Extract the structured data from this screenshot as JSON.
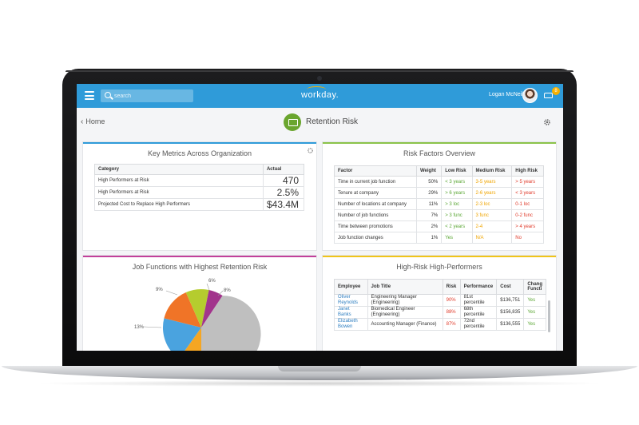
{
  "topbar": {
    "search_placeholder": "search",
    "logo_text": "workday.",
    "user_name": "Logan McNeil",
    "notification_count": "8"
  },
  "subheader": {
    "back_label": "Home",
    "page_title": "Retention Risk"
  },
  "key_metrics": {
    "title": "Key Metrics Across Organization",
    "columns": [
      "Category",
      "Actual"
    ],
    "rows": [
      {
        "category": "High Performers at Risk",
        "actual": "470"
      },
      {
        "category": "High Performers at Risk",
        "actual": "2.5%"
      },
      {
        "category": "Projected Cost to Replace High Performers",
        "actual": "$43.4M"
      }
    ]
  },
  "risk_factors": {
    "title": "Risk Factors Overview",
    "columns": [
      "Factor",
      "Weight",
      "Low Risk",
      "Medium Risk",
      "High Risk"
    ],
    "rows": [
      {
        "factor": "Time in current job function",
        "weight": "50%",
        "low": "< 3 years",
        "medium": "3-5 years",
        "high": "> 5 years"
      },
      {
        "factor": "Tenure at company",
        "weight": "29%",
        "low": "> 6 years",
        "medium": "2-6 years",
        "high": "< 3 years"
      },
      {
        "factor": "Number of locations at company",
        "weight": "11%",
        "low": "> 3 loc",
        "medium": "2-3 loc",
        "high": "0-1 loc"
      },
      {
        "factor": "Number of job functions",
        "weight": "7%",
        "low": "> 3 func",
        "medium": "3 func",
        "high": "0-2 func"
      },
      {
        "factor": "Time between promotions",
        "weight": "2%",
        "low": "< 2 years",
        "medium": "2-4",
        "high": "> 4 years"
      },
      {
        "factor": "Job function changes",
        "weight": "1%",
        "low": "Yes",
        "medium": "N/A",
        "high": "No"
      }
    ]
  },
  "job_functions": {
    "title": "Job Functions with Highest Retention Risk",
    "labels": [
      "6%",
      "9%",
      "8%",
      "13%"
    ]
  },
  "high_risk": {
    "title": "High-Risk High-Performers",
    "columns": [
      "Employee",
      "Job Title",
      "Risk",
      "Performance",
      "Cost",
      "Chang Functi"
    ],
    "rows": [
      {
        "employee": "Oliver Reynolds",
        "job_title": "Engineering Manager (Engineering)",
        "risk": "90%",
        "performance": "81st percentile",
        "cost": "$136,751",
        "change": "Yes"
      },
      {
        "employee": "Janet Banks",
        "job_title": "Biomedical Engineer (Engineering)",
        "risk": "88%",
        "performance": "68th percentile",
        "cost": "$156,835",
        "change": "Yes"
      },
      {
        "employee": "Elizabeth Bowen",
        "job_title": "Accounting Manager (Finance)",
        "risk": "87%",
        "performance": "72nd percentile",
        "cost": "$136,555",
        "change": "Yes"
      }
    ]
  },
  "colors": {
    "topbar_blue": "#2f9bd9",
    "accent_gold": "#f7b000",
    "key_metrics_border": "#2f9bd9",
    "risk_factors_border": "#8bc34a",
    "job_functions_border": "#c2409a",
    "high_risk_border": "#f0c419",
    "low_risk": "#5ba735",
    "medium_risk": "#f0a500",
    "high_risk": "#e03b2b"
  },
  "icons": [
    "menu-icon",
    "search-icon",
    "inbox-icon",
    "gear-icon",
    "back-chevron-icon",
    "report-icon"
  ]
}
